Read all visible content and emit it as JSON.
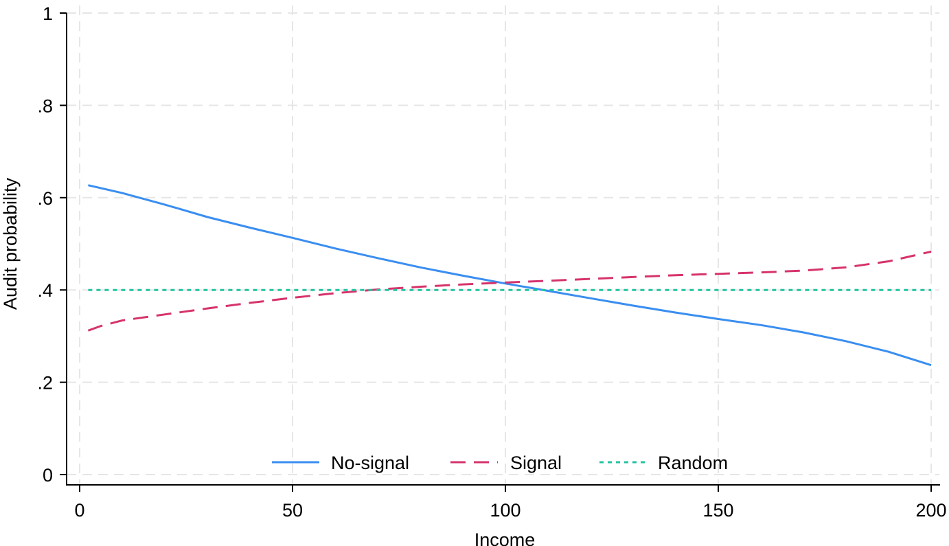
{
  "chart_data": {
    "type": "line",
    "title": "",
    "xlabel": "Income",
    "ylabel": "Audit probability",
    "xlim": [
      0,
      200
    ],
    "ylim": [
      0,
      1
    ],
    "x_ticks": [
      {
        "value": 0,
        "label": "0"
      },
      {
        "value": 50,
        "label": "50"
      },
      {
        "value": 100,
        "label": "100"
      },
      {
        "value": 150,
        "label": "150"
      },
      {
        "value": 200,
        "label": "200"
      }
    ],
    "y_ticks": [
      {
        "value": 0,
        "label": "0"
      },
      {
        "value": 0.2,
        "label": ".2"
      },
      {
        "value": 0.4,
        "label": ".4"
      },
      {
        "value": 0.6,
        "label": ".6"
      },
      {
        "value": 0.8,
        "label": ".8"
      },
      {
        "value": 1,
        "label": "1"
      }
    ],
    "grid": true,
    "legend_position": "bottom",
    "series": [
      {
        "name": "No-signal",
        "color": "#3a8ef0",
        "dash": "solid",
        "x": [
          2,
          10,
          20,
          30,
          40,
          50,
          60,
          70,
          80,
          90,
          100,
          110,
          120,
          130,
          140,
          150,
          160,
          170,
          180,
          190,
          200
        ],
        "y": [
          0.627,
          0.61,
          0.585,
          0.558,
          0.535,
          0.513,
          0.49,
          0.469,
          0.449,
          0.431,
          0.414,
          0.398,
          0.382,
          0.366,
          0.351,
          0.337,
          0.324,
          0.308,
          0.289,
          0.266,
          0.237
        ]
      },
      {
        "name": "Signal",
        "color": "#d6336c",
        "dash": "dashed",
        "x": [
          2,
          5,
          10,
          20,
          30,
          40,
          50,
          60,
          70,
          80,
          90,
          100,
          110,
          120,
          130,
          140,
          150,
          160,
          170,
          180,
          190,
          200
        ],
        "y": [
          0.312,
          0.322,
          0.334,
          0.347,
          0.36,
          0.372,
          0.383,
          0.393,
          0.401,
          0.407,
          0.412,
          0.416,
          0.42,
          0.424,
          0.428,
          0.432,
          0.435,
          0.438,
          0.442,
          0.449,
          0.462,
          0.483
        ]
      },
      {
        "name": "Random",
        "color": "#22c4a0",
        "dash": "dotted",
        "x": [
          2,
          200
        ],
        "y": [
          0.4,
          0.4
        ]
      }
    ]
  }
}
